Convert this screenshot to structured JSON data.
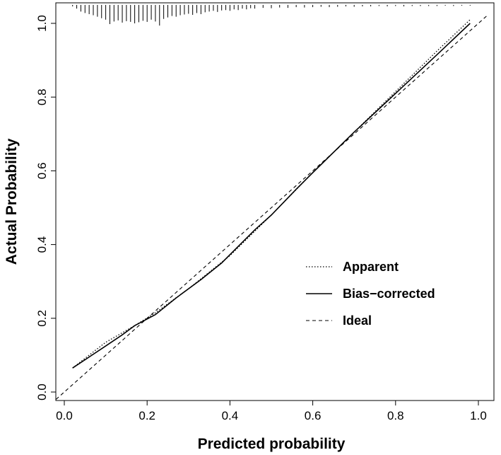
{
  "chart_data": {
    "type": "line",
    "title": "",
    "xlabel": "Predicted probability",
    "ylabel": "Actual Probability",
    "xlim": [
      -0.02,
      1.02
    ],
    "ylim": [
      -0.01,
      1.05
    ],
    "x_ticks": [
      "0.0",
      "0.2",
      "0.4",
      "0.6",
      "0.8",
      "1.0"
    ],
    "y_ticks": [
      "0.0",
      "0.2",
      "0.4",
      "0.6",
      "0.8",
      "1.0"
    ],
    "grid": false,
    "legend_position": "bottom-right",
    "series": [
      {
        "name": "Apparent",
        "style": "dotted",
        "x": [
          0.02,
          0.1,
          0.17,
          0.22,
          0.3,
          0.4,
          0.5,
          0.6,
          0.7,
          0.8,
          0.9,
          0.98
        ],
        "y": [
          0.065,
          0.135,
          0.18,
          0.215,
          0.28,
          0.37,
          0.48,
          0.595,
          0.705,
          0.815,
          0.925,
          1.01
        ]
      },
      {
        "name": "Bias−corrected",
        "style": "solid",
        "x": [
          0.02,
          0.06,
          0.1,
          0.14,
          0.17,
          0.22,
          0.27,
          0.33,
          0.38,
          0.42,
          0.46,
          0.5,
          0.56,
          0.6,
          0.7,
          0.8,
          0.9,
          0.98
        ],
        "y": [
          0.065,
          0.095,
          0.125,
          0.155,
          0.18,
          0.21,
          0.255,
          0.305,
          0.35,
          0.395,
          0.44,
          0.48,
          0.55,
          0.595,
          0.705,
          0.81,
          0.915,
          1.0
        ]
      },
      {
        "name": "Ideal",
        "style": "dashed",
        "x": [
          -0.02,
          1.02
        ],
        "y": [
          -0.02,
          1.02
        ]
      }
    ],
    "rug": {
      "baseline": 1.05,
      "x": [
        0.02,
        0.03,
        0.04,
        0.05,
        0.06,
        0.07,
        0.08,
        0.09,
        0.1,
        0.11,
        0.12,
        0.13,
        0.14,
        0.15,
        0.16,
        0.17,
        0.18,
        0.19,
        0.2,
        0.21,
        0.22,
        0.23,
        0.24,
        0.25,
        0.26,
        0.27,
        0.28,
        0.29,
        0.3,
        0.31,
        0.32,
        0.33,
        0.34,
        0.35,
        0.36,
        0.37,
        0.38,
        0.39,
        0.4,
        0.41,
        0.42,
        0.43,
        0.44,
        0.45,
        0.46,
        0.48,
        0.5,
        0.52,
        0.54,
        0.56,
        0.58,
        0.6,
        0.62,
        0.64,
        0.66,
        0.68,
        0.7,
        0.72,
        0.74,
        0.76,
        0.78,
        0.8,
        0.82,
        0.84,
        0.86,
        0.88,
        0.9,
        0.92,
        0.94,
        0.96,
        0.98
      ],
      "length": [
        0.004,
        0.01,
        0.018,
        0.022,
        0.025,
        0.028,
        0.032,
        0.036,
        0.04,
        0.052,
        0.045,
        0.042,
        0.048,
        0.044,
        0.046,
        0.05,
        0.047,
        0.043,
        0.046,
        0.04,
        0.045,
        0.056,
        0.038,
        0.034,
        0.03,
        0.032,
        0.028,
        0.026,
        0.024,
        0.027,
        0.022,
        0.025,
        0.02,
        0.018,
        0.016,
        0.019,
        0.015,
        0.014,
        0.016,
        0.012,
        0.014,
        0.01,
        0.012,
        0.009,
        0.01,
        0.008,
        0.009,
        0.007,
        0.008,
        0.006,
        0.007,
        0.006,
        0.005,
        0.006,
        0.005,
        0.004,
        0.005,
        0.004,
        0.004,
        0.003,
        0.004,
        0.003,
        0.004,
        0.003,
        0.003,
        0.003,
        0.003,
        0.002,
        0.003,
        0.002,
        0.002
      ]
    }
  }
}
